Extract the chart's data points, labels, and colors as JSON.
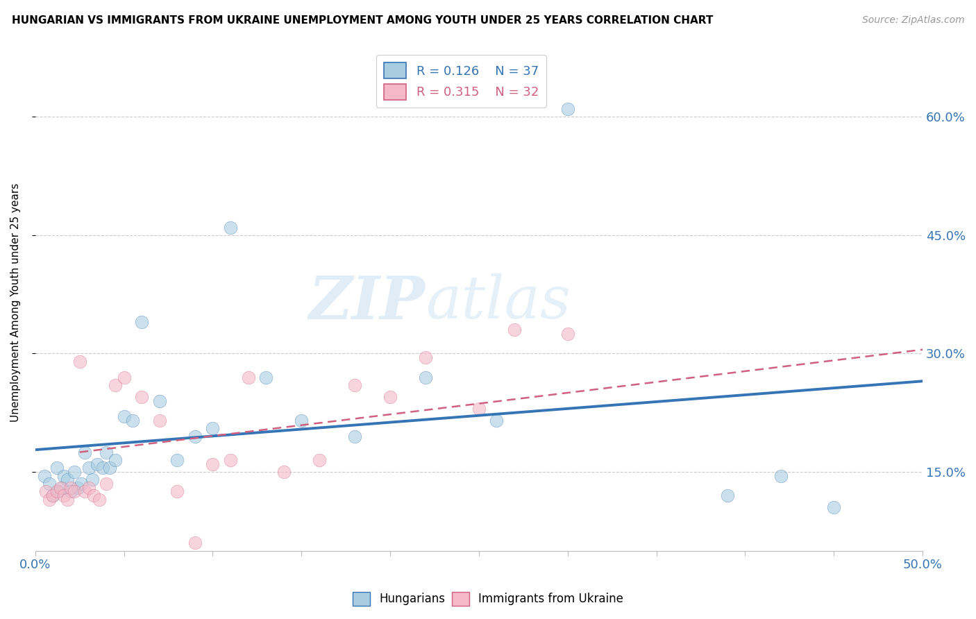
{
  "title": "HUNGARIAN VS IMMIGRANTS FROM UKRAINE UNEMPLOYMENT AMONG YOUTH UNDER 25 YEARS CORRELATION CHART",
  "source": "Source: ZipAtlas.com",
  "ylabel": "Unemployment Among Youth under 25 years",
  "xlim": [
    0.0,
    0.5
  ],
  "ylim": [
    0.05,
    0.68
  ],
  "xticks": [
    0.0,
    0.05,
    0.1,
    0.15,
    0.2,
    0.25,
    0.3,
    0.35,
    0.4,
    0.45,
    0.5
  ],
  "yticks": [
    0.15,
    0.3,
    0.45,
    0.6
  ],
  "ytick_labels": [
    "15.0%",
    "30.0%",
    "45.0%",
    "60.0%"
  ],
  "xtick_labels": [
    "0.0%",
    "",
    "",
    "",
    "",
    "",
    "",
    "",
    "",
    "",
    "50.0%"
  ],
  "blue_R": 0.126,
  "blue_N": 37,
  "pink_R": 0.315,
  "pink_N": 32,
  "blue_color": "#a8cce0",
  "pink_color": "#f4b8c8",
  "blue_line_color": "#3575b5",
  "pink_line_color": "#d06080",
  "watermark_zip": "ZIP",
  "watermark_atlas": "atlas",
  "blue_scatter_x": [
    0.005,
    0.008,
    0.01,
    0.012,
    0.013,
    0.015,
    0.016,
    0.018,
    0.02,
    0.022,
    0.024,
    0.026,
    0.028,
    0.03,
    0.032,
    0.035,
    0.038,
    0.04,
    0.042,
    0.045,
    0.05,
    0.055,
    0.06,
    0.07,
    0.08,
    0.09,
    0.1,
    0.11,
    0.13,
    0.15,
    0.18,
    0.22,
    0.26,
    0.3,
    0.39,
    0.42,
    0.45
  ],
  "blue_scatter_y": [
    0.145,
    0.135,
    0.12,
    0.155,
    0.125,
    0.13,
    0.145,
    0.14,
    0.125,
    0.15,
    0.13,
    0.135,
    0.175,
    0.155,
    0.14,
    0.16,
    0.155,
    0.175,
    0.155,
    0.165,
    0.22,
    0.215,
    0.34,
    0.24,
    0.165,
    0.195,
    0.205,
    0.46,
    0.27,
    0.215,
    0.195,
    0.27,
    0.215,
    0.61,
    0.12,
    0.145,
    0.105
  ],
  "pink_scatter_x": [
    0.006,
    0.008,
    0.01,
    0.012,
    0.014,
    0.016,
    0.018,
    0.02,
    0.022,
    0.025,
    0.028,
    0.03,
    0.033,
    0.036,
    0.04,
    0.045,
    0.05,
    0.06,
    0.07,
    0.08,
    0.09,
    0.1,
    0.11,
    0.12,
    0.14,
    0.16,
    0.18,
    0.2,
    0.22,
    0.25,
    0.27,
    0.3
  ],
  "pink_scatter_y": [
    0.125,
    0.115,
    0.12,
    0.125,
    0.13,
    0.12,
    0.115,
    0.13,
    0.125,
    0.29,
    0.125,
    0.13,
    0.12,
    0.115,
    0.135,
    0.26,
    0.27,
    0.245,
    0.215,
    0.125,
    0.06,
    0.16,
    0.165,
    0.27,
    0.15,
    0.165,
    0.26,
    0.245,
    0.295,
    0.23,
    0.33,
    0.325
  ],
  "blue_trend_x": [
    0.0,
    0.5
  ],
  "blue_trend_y": [
    0.178,
    0.265
  ],
  "pink_trend_x": [
    0.025,
    0.5
  ],
  "pink_trend_y": [
    0.175,
    0.305
  ]
}
